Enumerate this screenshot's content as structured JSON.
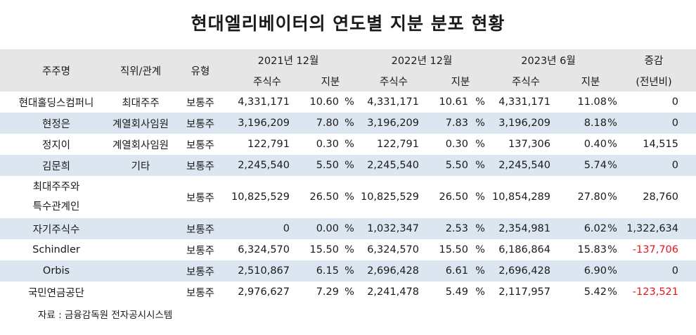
{
  "title": "현대엘리베이터의 연도별 지분 분포 현황",
  "header": {
    "name": "주주명",
    "relation": "직위/관계",
    "type": "유형",
    "p1": "2021년 12월",
    "p2": "2022년 12월",
    "p3": "2023년 6월",
    "shares": "주식수",
    "stake": "지분",
    "change1": "증감",
    "change2": "(전년비)"
  },
  "rows": [
    {
      "name": "현대홀딩스컴퍼니",
      "rel": "최대주주",
      "type": "보통주",
      "s1": "4,331,171",
      "p1": "10.60",
      "s2": "4,331,171",
      "p2": "10.61",
      "s3": "4,331,171",
      "p3": "11.08",
      "chg": "0"
    },
    {
      "name": "현정은",
      "rel": "계열회사임원",
      "type": "보통주",
      "s1": "3,196,209",
      "p1": "7.80",
      "s2": "3,196,209",
      "p2": "7.83",
      "s3": "3,196,209",
      "p3": "8.18",
      "chg": "0"
    },
    {
      "name": "정지이",
      "rel": "계열회사임원",
      "type": "보통주",
      "s1": "122,791",
      "p1": "0.30",
      "s2": "122,791",
      "p2": "0.30",
      "s3": "137,306",
      "p3": "0.40",
      "chg": "14,515"
    },
    {
      "name": "김문희",
      "rel": "기타",
      "type": "보통주",
      "s1": "2,245,540",
      "p1": "5.50",
      "s2": "2,245,540",
      "p2": "5.50",
      "s3": "2,245,540",
      "p3": "5.74",
      "chg": "0"
    },
    {
      "name": "최대주주와",
      "name2": "특수관계인",
      "rel": "",
      "type": "보통주",
      "s1": "10,825,529",
      "p1": "26.50",
      "s2": "10,825,529",
      "p2": "26.50",
      "s3": "10,854,289",
      "p3": "27.80",
      "chg": "28,760"
    },
    {
      "name": "자기주식수",
      "rel": "",
      "type": "보통주",
      "s1": "0",
      "p1": "0.00",
      "s2": "1,032,347",
      "p2": "2.53",
      "s3": "2,354,981",
      "p3": "6.02",
      "chg": "1,322,634"
    },
    {
      "name": "Schindler",
      "rel": "",
      "type": "보통주",
      "s1": "6,324,570",
      "p1": "15.50",
      "s2": "6,324,570",
      "p2": "15.50",
      "s3": "6,186,864",
      "p3": "15.83",
      "chg": "-137,706"
    },
    {
      "name": "Orbis",
      "rel": "",
      "type": "보통주",
      "s1": "2,510,867",
      "p1": "6.15",
      "s2": "2,696,428",
      "p2": "6.61",
      "s3": "2,696,428",
      "p3": "6.90",
      "chg": "0"
    },
    {
      "name": "국민연금공단",
      "rel": "",
      "type": "보통주",
      "s1": "2,976,627",
      "p1": "7.29",
      "s2": "2,241,478",
      "p2": "5.49",
      "s3": "2,117,957",
      "p3": "5.42",
      "chg": "-123,521"
    }
  ],
  "unit": "%",
  "source": "자료 : 금융감독원 전자공시시스템",
  "colors": {
    "header_bg": "#e6e6e6",
    "stripe": "#dce6f1",
    "negative": "#e8141c"
  }
}
